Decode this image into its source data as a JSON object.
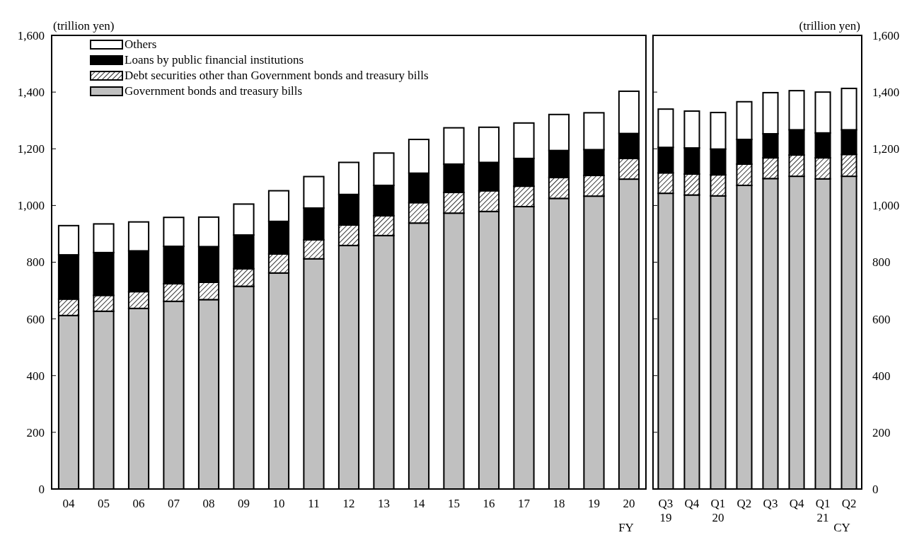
{
  "chart_data": [
    {
      "type": "bar",
      "stacked": true,
      "ylabel": "(trillion yen)",
      "xlabel": "FY",
      "legend": "top left",
      "grid": false,
      "categories": [
        "04",
        "05",
        "06",
        "07",
        "08",
        "09",
        "10",
        "11",
        "12",
        "13",
        "14",
        "15",
        "16",
        "17",
        "18",
        "19",
        "20"
      ],
      "ylim": [
        0,
        1600
      ],
      "yticks": [
        0,
        {
          "value": 200,
          "label": "200"
        },
        {
          "value": 400,
          "label": "400"
        },
        {
          "value": 600,
          "label": "600"
        },
        {
          "value": 800,
          "label": "800"
        },
        {
          "value": 1000,
          "label": "1,000"
        },
        {
          "value": 1200,
          "label": "1,200"
        },
        {
          "value": 1400,
          "label": "1,400"
        },
        {
          "value": 1600,
          "label": "1,600"
        }
      ],
      "series": [
        {
          "name": "Government bonds and treasury bills",
          "color": "#c0c0c0",
          "values": [
            612,
            627,
            637,
            662,
            668,
            715,
            762,
            812,
            859,
            894,
            938,
            973,
            979,
            996,
            1025,
            1033,
            1093
          ]
        },
        {
          "name": "Debt securities other than Government bonds and treasury bills",
          "color": "#000000",
          "values": [
            58,
            56,
            59,
            62,
            61,
            62,
            67,
            67,
            72,
            70,
            72,
            73,
            73,
            72,
            74,
            73,
            73
          ]
        },
        {
          "name": "Loans by public financial institutions",
          "color": "#000000",
          "values": [
            156,
            151,
            144,
            132,
            126,
            119,
            115,
            112,
            108,
            107,
            104,
            100,
            100,
            98,
            95,
            91,
            88
          ]
        },
        {
          "name": "Others",
          "color": "#ffffff",
          "values": [
            103,
            101,
            102,
            102,
            104,
            109,
            108,
            111,
            113,
            114,
            119,
            128,
            124,
            125,
            127,
            130,
            149
          ]
        }
      ]
    },
    {
      "type": "bar",
      "stacked": true,
      "y2label": "(trillion yen)",
      "xlabel": "CY",
      "grid": false,
      "categories": [
        "Q3\n19",
        "Q4",
        "Q1\n20",
        "Q2",
        "Q3",
        "Q4",
        "Q1\n21",
        "Q2"
      ],
      "y2lim": [
        0,
        1600
      ],
      "y2ticks": [
        0,
        {
          "value": 200,
          "label": "200"
        },
        {
          "value": 400,
          "label": "400"
        },
        {
          "value": 600,
          "label": "600"
        },
        {
          "value": 800,
          "label": "800"
        },
        {
          "value": 1000,
          "label": "1,000"
        },
        {
          "value": 1200,
          "label": "1,200"
        },
        {
          "value": 1400,
          "label": "1,400"
        },
        {
          "value": 1600,
          "label": "1,600"
        }
      ],
      "series": [
        {
          "color": "#c0c0c0",
          "axis": "y2",
          "values": [
            1043,
            1037,
            1034,
            1071,
            1095,
            1103,
            1094,
            1103
          ]
        },
        {
          "color": "#000000",
          "axis": "y2",
          "values": [
            72,
            74,
            74,
            75,
            73,
            75,
            74,
            77
          ]
        },
        {
          "color": "#000000",
          "axis": "y2",
          "values": [
            90,
            92,
            91,
            87,
            85,
            89,
            88,
            87
          ]
        },
        {
          "color": "#ffffff",
          "axis": "y2",
          "values": [
            135,
            130,
            129,
            133,
            145,
            138,
            144,
            146
          ]
        }
      ]
    }
  ]
}
